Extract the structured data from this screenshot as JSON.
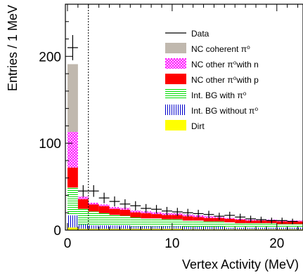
{
  "chart_data": {
    "type": "histogram-stacked",
    "xlabel": "Vertex Activity (MeV)",
    "ylabel": "Entries / 1 MeV",
    "xlim": [
      -0.2,
      22.5
    ],
    "ylim": [
      0,
      260
    ],
    "x_ticks": [
      0,
      10,
      20
    ],
    "y_ticks": [
      0,
      100,
      200
    ],
    "cut_line_x": 2,
    "bin_edges": [
      0,
      1,
      2,
      3,
      4,
      5,
      6,
      7,
      8,
      9,
      10,
      11,
      12,
      13,
      14,
      15,
      16,
      17,
      18,
      19,
      20,
      21,
      22,
      23
    ],
    "series": [
      {
        "name": "Dirt",
        "color": "#ffff00",
        "pattern": "solid",
        "values": [
          3,
          1.5,
          1.5,
          1.5,
          1.5,
          1.5,
          1.5,
          1.5,
          1.5,
          1.5,
          1.5,
          1,
          1,
          1,
          1,
          1,
          1,
          1,
          1,
          1,
          1,
          1,
          1
        ]
      },
      {
        "name": "Int. BG without π⁰",
        "color": "#0000cc",
        "pattern": "vlines",
        "values": [
          14,
          5,
          4,
          4,
          4,
          4,
          3,
          3,
          3,
          3,
          3,
          3,
          3,
          3,
          3,
          2,
          2,
          2,
          2,
          2,
          2,
          2,
          2
        ]
      },
      {
        "name": "Int. BG with π⁰",
        "color": "#00dd00",
        "pattern": "hlines",
        "values": [
          32,
          18,
          16,
          14,
          12,
          11,
          10,
          9,
          9,
          8,
          8,
          7,
          7,
          6,
          6,
          6,
          5,
          5,
          5,
          5,
          4,
          4,
          4
        ]
      },
      {
        "name": "NC other π⁰ with p",
        "color": "#ff0000",
        "pattern": "solid",
        "values": [
          23,
          11,
          8,
          8,
          7,
          7,
          6,
          6,
          5,
          5,
          5,
          5,
          4,
          4,
          4,
          4,
          4,
          3,
          3,
          3,
          3,
          3,
          3
        ]
      },
      {
        "name": "NC other π⁰ with n",
        "color": "#ff00ff",
        "pattern": "cross",
        "values": [
          41,
          3,
          2,
          2,
          2,
          2,
          2,
          2,
          2,
          2,
          2,
          2,
          2,
          2,
          1,
          1,
          1,
          1,
          1,
          1,
          1,
          1,
          1
        ]
      },
      {
        "name": "NC coherent π⁰",
        "color": "#c0b8ae",
        "pattern": "solid",
        "values": [
          78,
          0,
          0,
          0,
          0,
          0,
          0,
          0,
          0,
          0,
          0,
          0,
          0,
          0,
          0,
          0,
          0,
          0,
          0,
          0,
          0,
          0,
          0
        ]
      }
    ],
    "data_points": {
      "name": "Data",
      "x": [
        0.5,
        1.5,
        2.5,
        3.5,
        4.5,
        5.5,
        6.5,
        7.5,
        8.5,
        9.5,
        10.5,
        11.5,
        12.5,
        13.5,
        14.5,
        15.5,
        16.5,
        17.5,
        18.5,
        19.5,
        20.5,
        21.5
      ],
      "y": [
        210,
        45,
        45,
        37,
        33,
        30,
        28,
        25,
        24,
        22,
        21,
        20,
        19,
        18,
        16,
        17,
        15,
        13,
        12,
        11,
        11,
        10
      ]
    },
    "legend": {
      "position": "top-right",
      "entries": [
        {
          "label": "Data",
          "kind": "line"
        },
        {
          "label": "NC coherent π⁰",
          "color": "#c0b8ae",
          "pattern": "solid"
        },
        {
          "label": "NC other π⁰with n",
          "color": "#ff00ff",
          "pattern": "cross"
        },
        {
          "label": "NC other π⁰with p",
          "color": "#ff0000",
          "pattern": "solid"
        },
        {
          "label": "Int. BG with π⁰",
          "color": "#00dd00",
          "pattern": "hlines"
        },
        {
          "label": "Int. BG without π⁰",
          "color": "#0000cc",
          "pattern": "vlines"
        },
        {
          "label": "Dirt",
          "color": "#ffff00",
          "pattern": "solid"
        }
      ]
    }
  }
}
